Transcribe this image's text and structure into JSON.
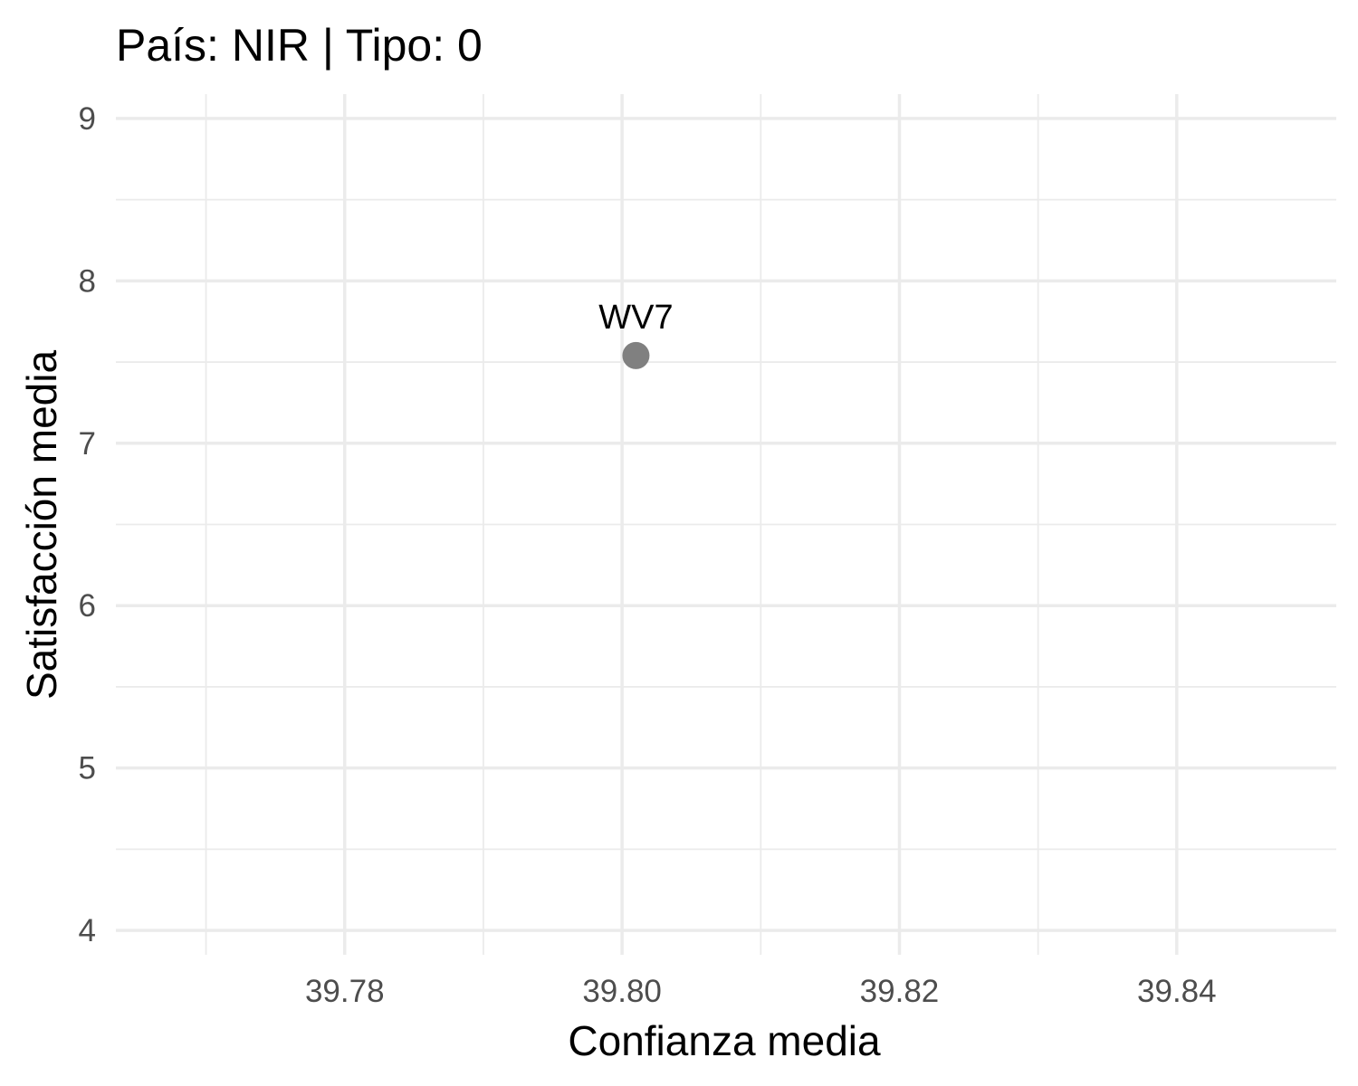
{
  "chart_data": {
    "type": "scatter",
    "title": "País: NIR | Tipo: 0",
    "xlabel": "Confianza media",
    "ylabel": "Satisfacción media",
    "xlim": [
      39.7635,
      39.8515
    ],
    "ylim": [
      3.85,
      9.15
    ],
    "x_ticks": [
      {
        "value": 39.78,
        "label": "39.78"
      },
      {
        "value": 39.8,
        "label": "39.80"
      },
      {
        "value": 39.82,
        "label": "39.82"
      },
      {
        "value": 39.84,
        "label": "39.84"
      }
    ],
    "x_minor_ticks": [
      39.77,
      39.79,
      39.81,
      39.83
    ],
    "y_ticks": [
      {
        "value": 4,
        "label": "4"
      },
      {
        "value": 5,
        "label": "5"
      },
      {
        "value": 6,
        "label": "6"
      },
      {
        "value": 7,
        "label": "7"
      },
      {
        "value": 8,
        "label": "8"
      },
      {
        "value": 9,
        "label": "9"
      }
    ],
    "y_minor_ticks": [
      4.5,
      5.5,
      6.5,
      7.5,
      8.5
    ],
    "grid": true,
    "legend": "none",
    "points": [
      {
        "x": 39.801,
        "y": 7.54,
        "label": "WV7",
        "color": "#808080"
      }
    ]
  }
}
